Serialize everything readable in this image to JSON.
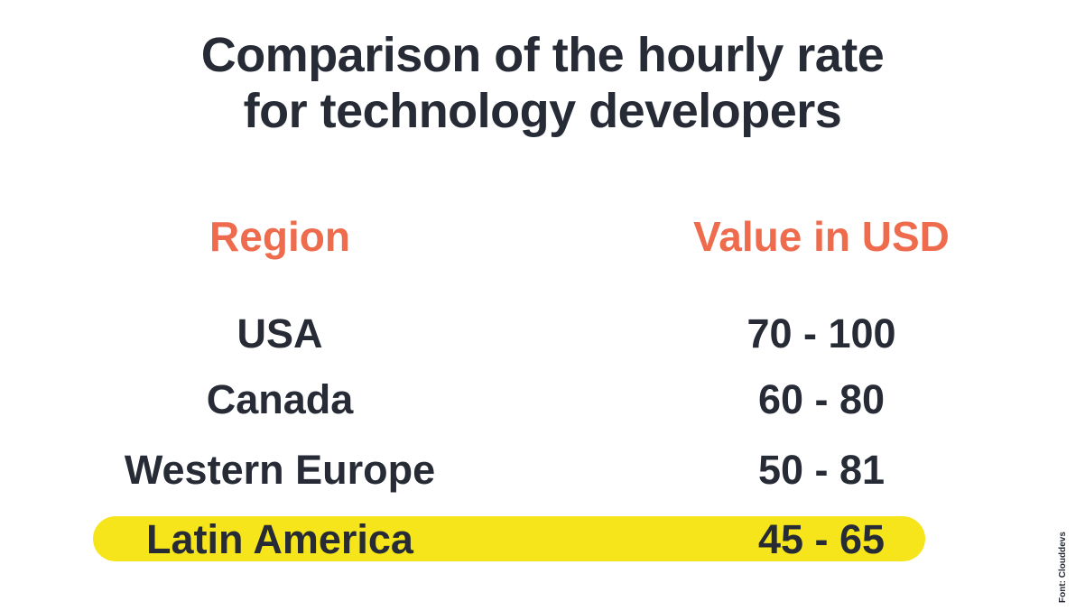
{
  "chart_data": {
    "type": "table",
    "title_lines": [
      "Comparison of the hourly rate",
      "for technology developers"
    ],
    "columns": [
      "Region",
      "Value in USD"
    ],
    "rows": [
      {
        "region": "USA",
        "value": "70 - 100",
        "min": 70,
        "max": 100,
        "highlighted": false
      },
      {
        "region": "Canada",
        "value": "60 - 80",
        "min": 60,
        "max": 80,
        "highlighted": false
      },
      {
        "region": "Western Europe",
        "value": "50 - 81",
        "min": 50,
        "max": 81,
        "highlighted": false
      },
      {
        "region": "Latin America",
        "value": "45 - 65",
        "min": 45,
        "max": 65,
        "highlighted": true
      }
    ],
    "source": "Font: Clouddevs"
  },
  "colors": {
    "title": "#262b35",
    "column_header": "#ee6b4e",
    "text": "#262b35",
    "highlight": "#f6e51a",
    "background": "#ffffff"
  }
}
